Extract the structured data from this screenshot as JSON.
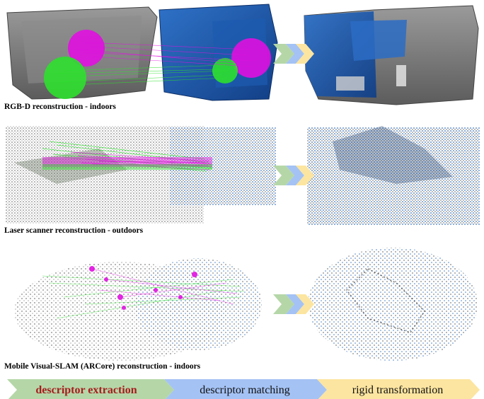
{
  "rows": [
    {
      "label": "RGB-D reconstruction - indoors"
    },
    {
      "label": "Laser scanner reconstruction - outdoors"
    },
    {
      "label": "Mobile Visual-SLAM (ARCore) reconstruction - indoors"
    }
  ],
  "pipeline": {
    "stages": [
      {
        "label": "descriptor extraction",
        "color": "#b5d7a8",
        "text_color": "#a61c1c"
      },
      {
        "label": "descriptor matching",
        "color": "#a4c2f4",
        "text_color": "#111111"
      },
      {
        "label": "rigid transformation",
        "color": "#fce5a0",
        "text_color": "#111111"
      }
    ]
  },
  "colors": {
    "source_cloud": "#6f6f6f",
    "target_cloud": "#1f5fb4",
    "keypoints_a": "#e010e0",
    "keypoints_b": "#2ee02e"
  },
  "icons": [
    "pipeline-arrow-icon"
  ]
}
